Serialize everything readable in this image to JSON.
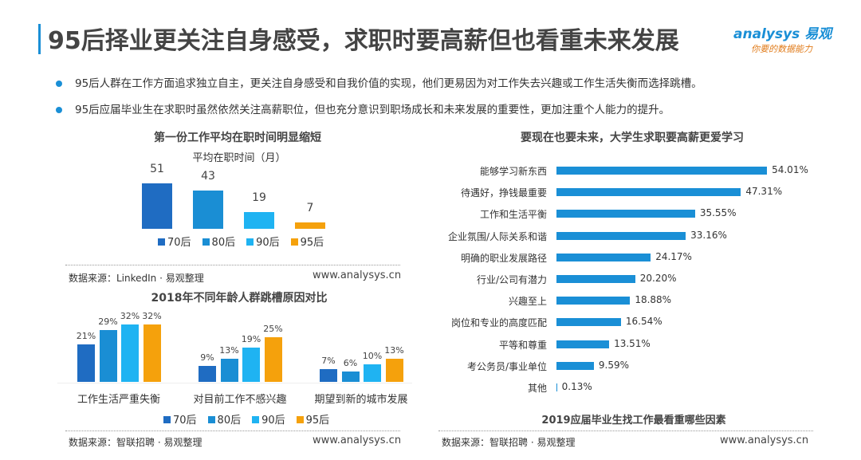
{
  "header": {
    "title": "95后择业更关注自身感受，求职时要高薪但也看重未来发展",
    "logo_line1": "analysys 易观",
    "logo_line2": "你要的数据能力"
  },
  "bullets": [
    "95后人群在工作方面追求独立自主，更关注自身感受和自我价值的实现，他们更易因为对工作失去兴趣或工作生活失衡而选择跳槽。",
    "95后应届毕业生在求职时虽然依然关注高薪职位，但也充分意识到职场成长和未来发展的重要性，更加注重个人能力的提升。"
  ],
  "colors": {
    "70后": "#1f6cc2",
    "80后": "#1a8ed4",
    "90后": "#1fb3f2",
    "95后": "#f5a10c",
    "accent": "#1a8fd6"
  },
  "chart_data": [
    {
      "type": "bar",
      "title": "第一份工作平均在职时间明显缩短",
      "subtitle": "平均在职时间（月）",
      "categories": [
        "70后",
        "80后",
        "90后",
        "95后"
      ],
      "values": [
        51,
        43,
        19,
        7
      ],
      "legend": [
        "70后",
        "80后",
        "90后",
        "95后"
      ],
      "legend_position": "bottom",
      "source": "数据来源：LinkedIn · 易观整理",
      "url": "www.analysys.cn"
    },
    {
      "type": "bar",
      "title": "2018年不同年龄人群跳槽原因对比",
      "categories": [
        "工作生活严重失衡",
        "对目前工作不感兴趣",
        "期望到新的城市发展"
      ],
      "series": [
        {
          "name": "70后",
          "values": [
            21,
            9,
            7
          ],
          "labels": [
            "21%",
            "9%",
            "7%"
          ]
        },
        {
          "name": "80后",
          "values": [
            29,
            13,
            6
          ],
          "labels": [
            "29%",
            "13%",
            "6%"
          ]
        },
        {
          "name": "90后",
          "values": [
            32,
            19,
            10
          ],
          "labels": [
            "32%",
            "19%",
            "10%"
          ]
        },
        {
          "name": "95后",
          "values": [
            32,
            25,
            13
          ],
          "labels": [
            "32%",
            "25%",
            "13%"
          ]
        }
      ],
      "legend_position": "bottom",
      "source": "数据来源：智联招聘 · 易观整理",
      "url": "www.analysys.cn"
    },
    {
      "type": "bar",
      "orientation": "horizontal",
      "title": "要现在也要未来，大学生求职要高薪更爱学习",
      "bottom_title": "2019应届毕业生找工作最看重哪些因素",
      "categories": [
        "能够学习新东西",
        "待遇好，挣钱最重要",
        "工作和生活平衡",
        "企业氛围/人际关系和谐",
        "明确的职业发展路径",
        "行业/公司有潜力",
        "兴趣至上",
        "岗位和专业的高度匹配",
        "平等和尊重",
        "考公务员/事业单位",
        "其他"
      ],
      "values": [
        54.01,
        47.31,
        35.55,
        33.16,
        24.17,
        20.2,
        18.88,
        16.54,
        13.51,
        9.59,
        0.13
      ],
      "labels": [
        "54.01%",
        "47.31%",
        "35.55%",
        "33.16%",
        "24.17%",
        "20.20%",
        "18.88%",
        "16.54%",
        "13.51%",
        "9.59%",
        "0.13%"
      ],
      "source": "数据来源：智联招聘 · 易观整理",
      "url": "www.analysys.cn"
    }
  ]
}
